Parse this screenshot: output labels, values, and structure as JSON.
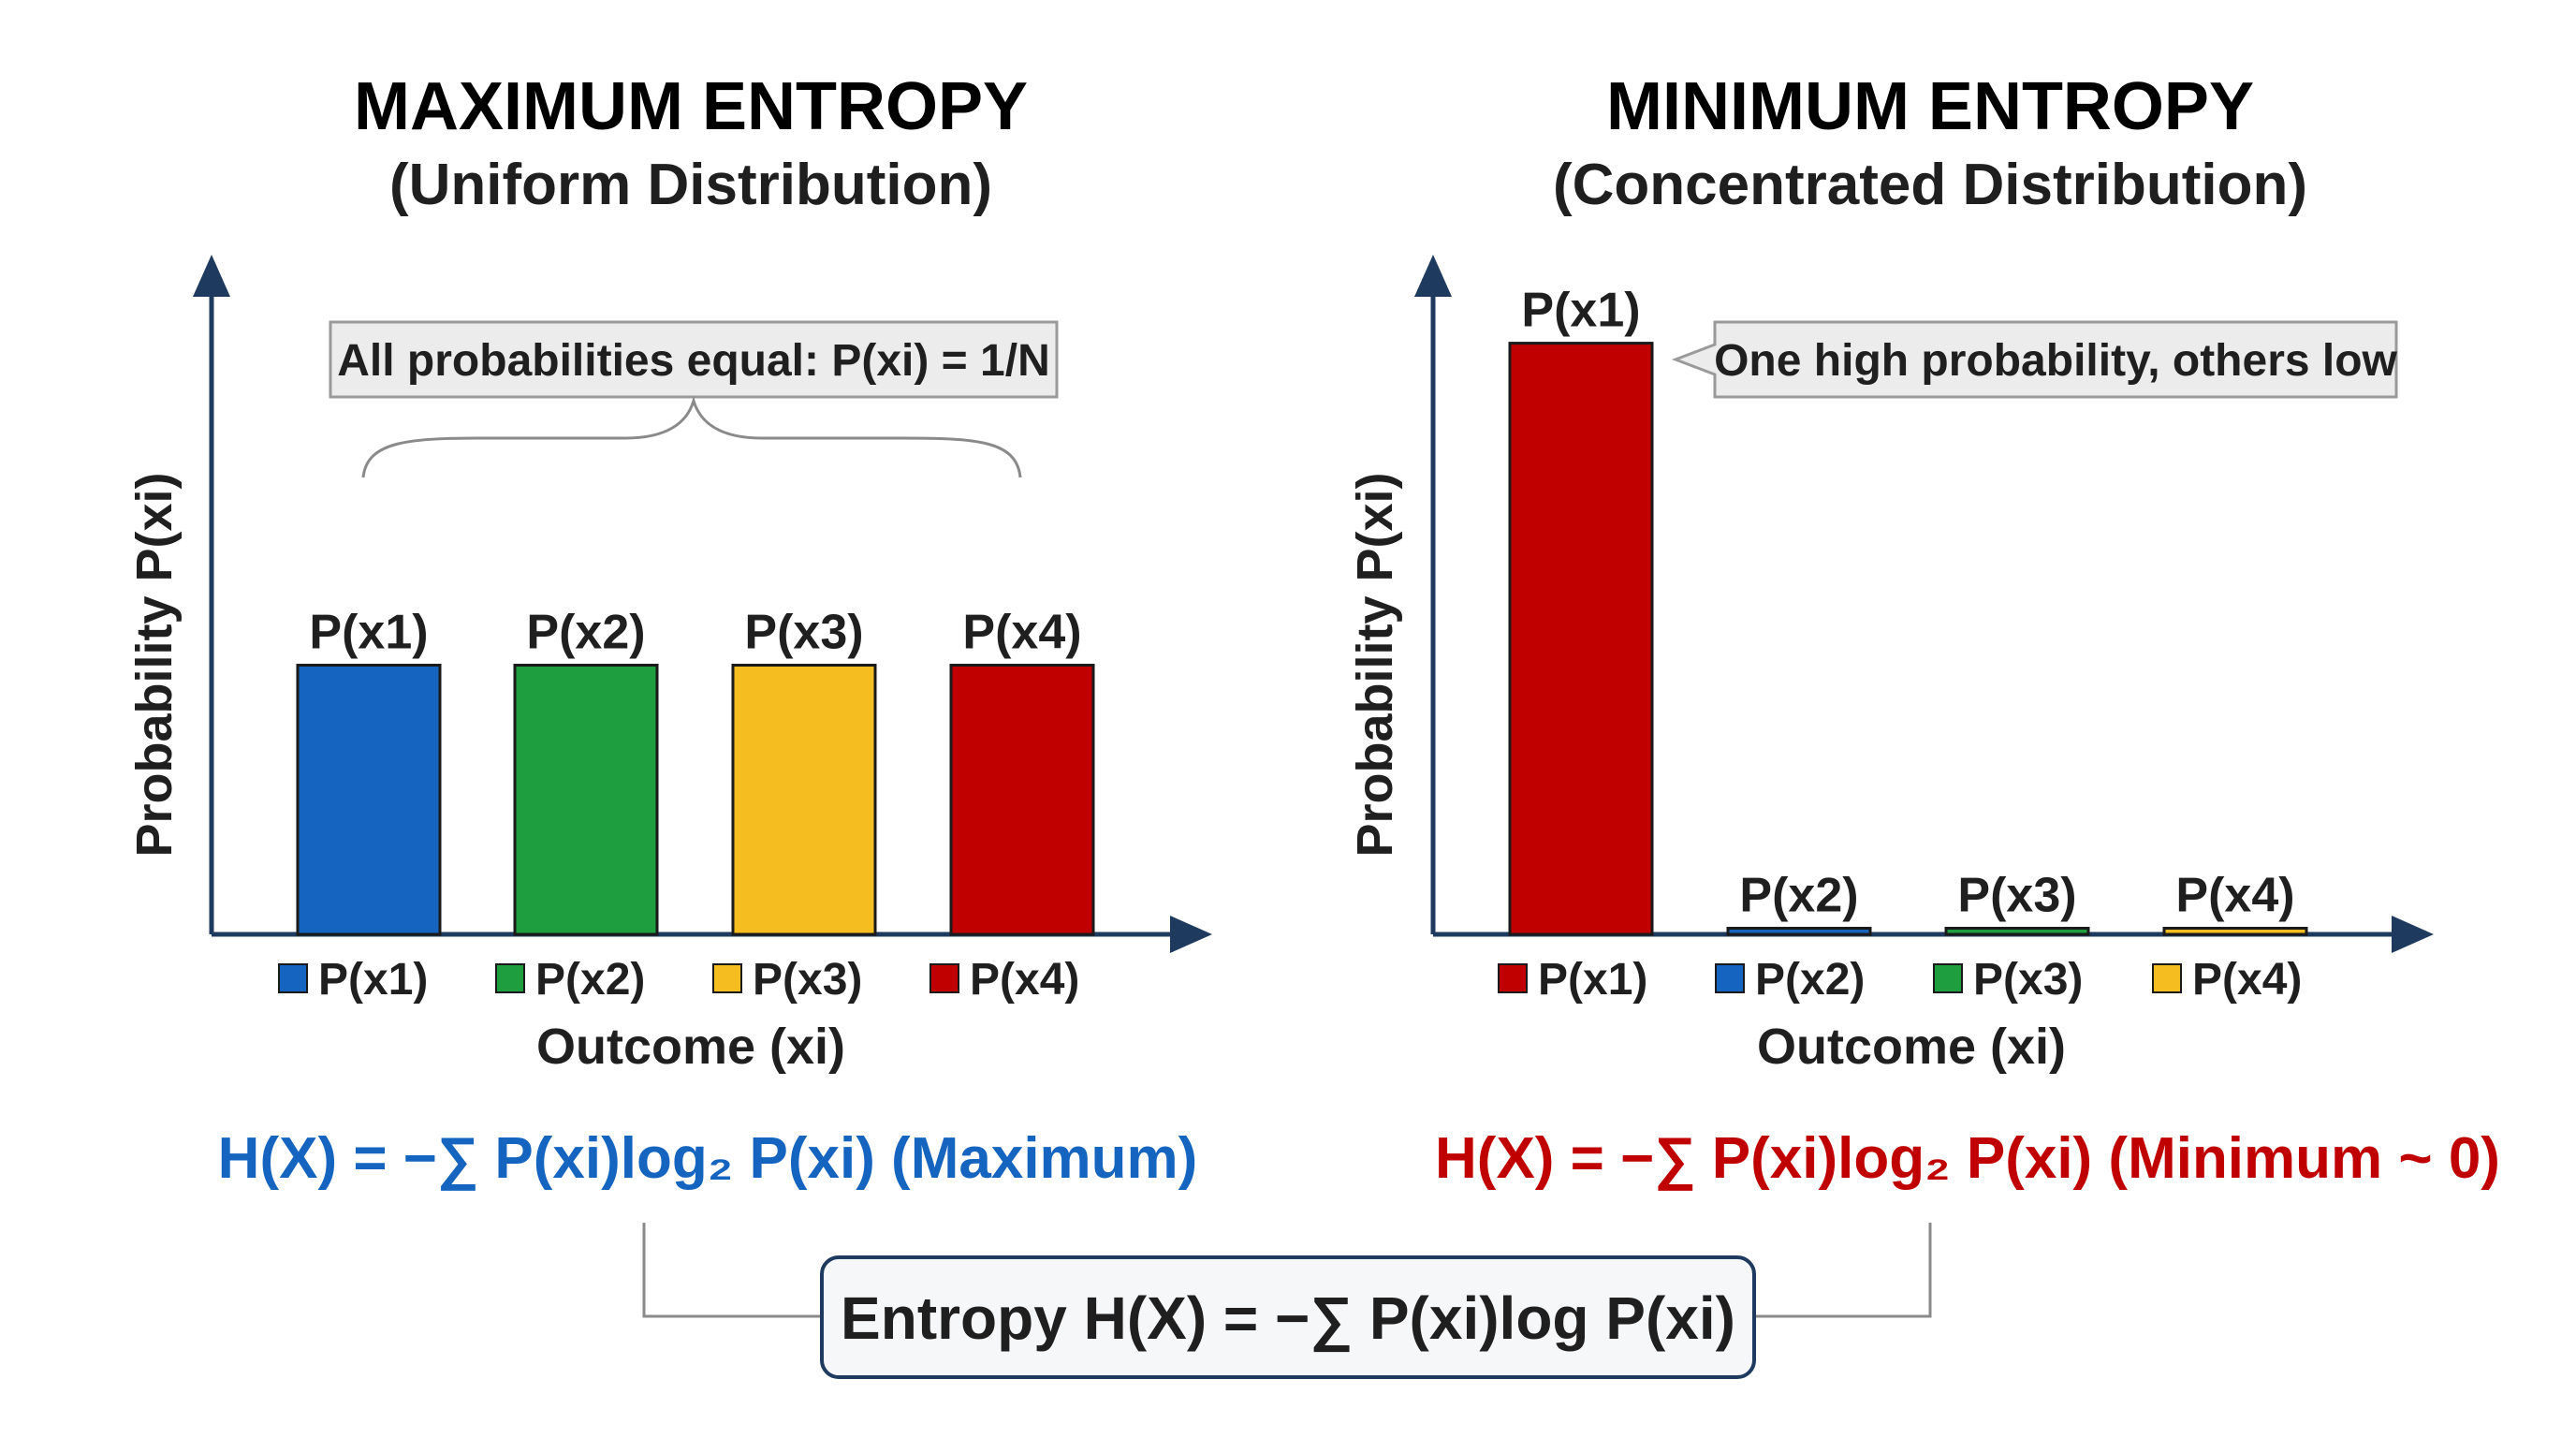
{
  "colors": {
    "blue": "#1565c0",
    "green": "#1e9e3e",
    "yellow": "#f5bd1f",
    "red": "#c00000",
    "axis": "#1f3a5f",
    "callout_bg": "#ececec",
    "callout_border": "#9a9a9a",
    "bracket": "#8a8a8a"
  },
  "chart_data": [
    {
      "type": "bar",
      "title": "MAXIMUM ENTROPY",
      "subtitle": "(Uniform Distribution)",
      "title_color": "#1565c0",
      "ylabel": "Probability P(xi)",
      "xlabel": "Outcome (xi)",
      "categories": [
        "P(x1)",
        "P(x2)",
        "P(x3)",
        "P(x4)"
      ],
      "values": [
        0.25,
        0.25,
        0.25,
        0.25
      ],
      "bar_colors": [
        "#1565c0",
        "#1e9e3e",
        "#f5bd1f",
        "#c00000"
      ],
      "ylim": [
        0,
        0.6
      ],
      "grid": false,
      "legend": {
        "placement": "below-axis",
        "entries": [
          {
            "label": "P(x1)",
            "color": "#1565c0"
          },
          {
            "label": "P(x2)",
            "color": "#1e9e3e"
          },
          {
            "label": "P(x3)",
            "color": "#f5bd1f"
          },
          {
            "label": "P(x4)",
            "color": "#c00000"
          }
        ]
      },
      "annotation": "All probabilities equal: P(xi) = 1/N",
      "formula": "H(X) = −∑ P(xi)log₂ P(xi) (Maximum)",
      "formula_color": "#1565c0"
    },
    {
      "type": "bar",
      "title": "MINIMUM ENTROPY",
      "subtitle": "(Concentrated Distribution)",
      "title_color": "#c00000",
      "ylabel": "Probability P(xi)",
      "xlabel": "Outcome (xi)",
      "categories": [
        "P(x1)",
        "P(x2)",
        "P(x3)",
        "P(x4)"
      ],
      "values": [
        0.97,
        0.01,
        0.01,
        0.01
      ],
      "bar_colors": [
        "#c00000",
        "#1565c0",
        "#1e9e3e",
        "#f5bd1f"
      ],
      "ylim": [
        0,
        1.06
      ],
      "grid": false,
      "legend": {
        "placement": "below-axis",
        "entries": [
          {
            "label": "P(x1)",
            "color": "#c00000"
          },
          {
            "label": "P(x2)",
            "color": "#1565c0"
          },
          {
            "label": "P(x3)",
            "color": "#1e9e3e"
          },
          {
            "label": "P(x4)",
            "color": "#f5bd1f"
          }
        ]
      },
      "annotation": "One high probability, others low",
      "formula": "H(X) = −∑ P(xi)log₂ P(xi) (Minimum ~ 0)",
      "formula_color": "#c00000"
    }
  ],
  "bottom_formula": "Entropy H(X) = −∑ P(xi)log P(xi)"
}
